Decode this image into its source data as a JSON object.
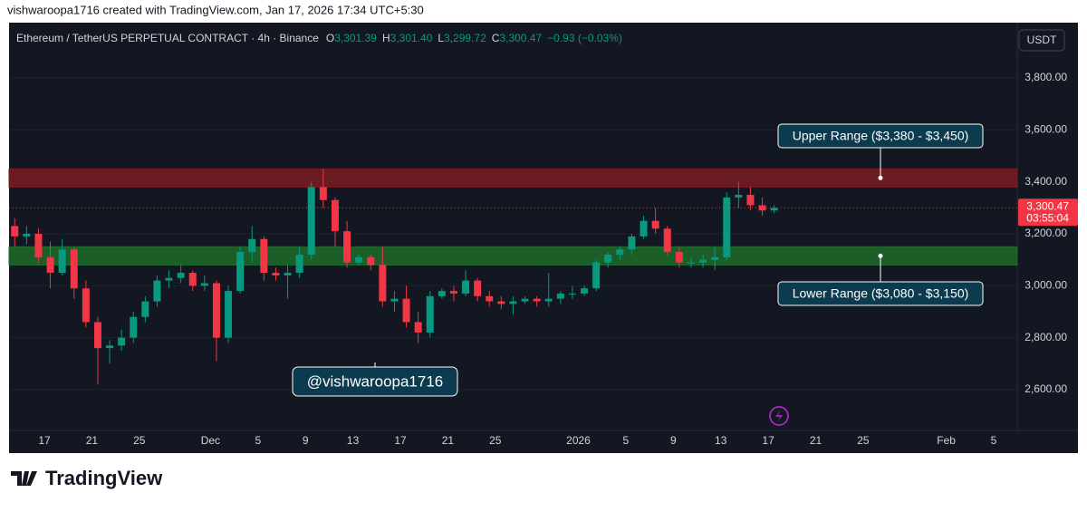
{
  "header": {
    "credit": "vishwaroopa1716 created with TradingView.com, Jan 17, 2026 17:34 UTC+5:30",
    "symbol": "Ethereum / TetherUS PERPETUAL CONTRACT · 4h · Binance",
    "ohlc": [
      {
        "key": "O",
        "text": "3,301.39"
      },
      {
        "key": "H",
        "text": "3,301.40"
      },
      {
        "key": "L",
        "text": "3,299.72"
      },
      {
        "key": "C",
        "text": "3,300.47"
      },
      {
        "key": "",
        "text": "−0.93 (−0.03%)"
      }
    ],
    "currency": "USDT"
  },
  "footer": {
    "brand": "TradingView"
  },
  "watermark": "@vishwaroopa1716",
  "chart_data": {
    "type": "candlestick",
    "categories": [
      null,
      null,
      null,
      "17",
      null,
      null,
      null,
      "21",
      null,
      null,
      null,
      "25",
      null,
      null,
      null,
      null,
      null,
      "Dec",
      null,
      null,
      null,
      "5",
      null,
      null,
      null,
      "9",
      null,
      null,
      null,
      "13",
      null,
      null,
      null,
      "17",
      null,
      null,
      null,
      "21",
      null,
      null,
      null,
      "25",
      null,
      null,
      null,
      null,
      null,
      null,
      "2026",
      null,
      null,
      null,
      "5",
      null,
      null,
      null,
      "9",
      null,
      null,
      null,
      "13",
      null,
      null,
      null,
      "17",
      null,
      null,
      null,
      "21",
      null,
      null,
      null,
      "25",
      null,
      null,
      null,
      null,
      null,
      null,
      "Feb",
      null,
      null,
      null,
      "5"
    ],
    "open": [
      3230,
      3190,
      3200,
      3110,
      3050,
      3140,
      2990,
      2860,
      2760,
      2770,
      2800,
      2880,
      2940,
      3020,
      3030,
      3050,
      3000,
      3010,
      2800,
      2980,
      3130,
      3180,
      3050,
      3040,
      3050,
      3120,
      3380,
      3330,
      3210,
      3090,
      3110,
      3080,
      2940,
      2950,
      2860,
      2820,
      2960,
      2980,
      2970,
      3020,
      2960,
      2940,
      2930,
      2940,
      2950,
      2940,
      2950,
      2970,
      2970,
      2990,
      3090,
      3120,
      3140,
      3190,
      3250,
      3220,
      3130,
      3090,
      3090,
      3100,
      3110,
      3340,
      3350,
      3310,
      3290,
      null,
      null,
      null,
      null,
      null,
      null,
      null,
      null,
      null,
      null,
      null,
      null,
      null,
      null,
      null,
      null,
      null,
      null,
      null
    ],
    "high": [
      3260,
      3230,
      3220,
      3170,
      3180,
      3150,
      3020,
      2880,
      2790,
      2830,
      2900,
      2960,
      3040,
      3060,
      3080,
      3060,
      3040,
      3020,
      3000,
      3150,
      3230,
      3190,
      3070,
      3080,
      3150,
      3400,
      3450,
      3340,
      3250,
      3120,
      3120,
      3150,
      2980,
      3000,
      2900,
      2980,
      2990,
      3000,
      3060,
      3030,
      2980,
      2960,
      2960,
      2960,
      2960,
      3050,
      2980,
      3000,
      3000,
      3100,
      3130,
      3150,
      3200,
      3270,
      3300,
      3230,
      3150,
      3110,
      3120,
      3150,
      3360,
      3400,
      3380,
      3340,
      3310,
      null,
      null,
      null,
      null,
      null,
      null,
      null,
      null,
      null,
      null,
      null,
      null,
      null,
      null,
      null,
      null,
      null,
      null,
      null
    ],
    "low": [
      3150,
      3160,
      3090,
      2990,
      3040,
      2950,
      2840,
      2620,
      2700,
      2750,
      2780,
      2860,
      2920,
      2990,
      3010,
      2980,
      2980,
      2710,
      2780,
      2970,
      3090,
      3020,
      3020,
      2950,
      3030,
      3100,
      3300,
      3150,
      3070,
      3080,
      3060,
      2920,
      2900,
      2840,
      2780,
      2800,
      2950,
      2940,
      2960,
      2940,
      2920,
      2910,
      2890,
      2930,
      2920,
      2920,
      2930,
      2950,
      2960,
      2980,
      3070,
      3100,
      3120,
      3180,
      3200,
      3120,
      3070,
      3070,
      3070,
      3060,
      3100,
      3300,
      3290,
      3270,
      3280,
      null,
      null,
      null,
      null,
      null,
      null,
      null,
      null,
      null,
      null,
      null,
      null,
      null,
      null,
      null,
      null,
      null,
      null,
      null
    ],
    "close": [
      3190,
      3200,
      3110,
      3050,
      3140,
      2990,
      2860,
      2760,
      2770,
      2800,
      2880,
      2940,
      3020,
      3030,
      3050,
      3000,
      3010,
      2800,
      2980,
      3130,
      3180,
      3050,
      3040,
      3050,
      3120,
      3380,
      3330,
      3210,
      3090,
      3110,
      3080,
      2940,
      2950,
      2860,
      2820,
      2960,
      2980,
      2970,
      3020,
      2960,
      2940,
      2930,
      2940,
      2950,
      2940,
      2950,
      2970,
      2970,
      2990,
      3090,
      3120,
      3140,
      3190,
      3250,
      3220,
      3130,
      3090,
      3090,
      3100,
      3110,
      3340,
      3350,
      3310,
      3290,
      3300,
      null,
      null,
      null,
      null,
      null,
      null,
      null,
      null,
      null,
      null,
      null,
      null,
      null,
      null,
      null,
      null,
      null,
      null,
      null
    ],
    "up_color": "#089981",
    "down_color": "#f23645",
    "ylim": [
      2443,
      4013
    ],
    "yticks": [
      {
        "value": 2600,
        "label": "2,600.00"
      },
      {
        "value": 2800,
        "label": "2,800.00"
      },
      {
        "value": 3000,
        "label": "3,000.00"
      },
      {
        "value": 3200,
        "label": "3,200.00"
      },
      {
        "value": 3400,
        "label": "3,400.00"
      },
      {
        "value": 3600,
        "label": "3,600.00"
      },
      {
        "value": 3800,
        "label": "3,800.00"
      }
    ],
    "last_price": {
      "value": 3300.47,
      "label": "3,300.47",
      "countdown": "03:55:04"
    },
    "zones": [
      {
        "label": "Upper Range ($3,380 - $3,450)",
        "low": 3380,
        "high": 3450,
        "color": "#7a1c22"
      },
      {
        "label": "Lower Range ($3,080 - $3,150)",
        "low": 3080,
        "high": 3150,
        "color": "#1f6b2a"
      }
    ]
  }
}
